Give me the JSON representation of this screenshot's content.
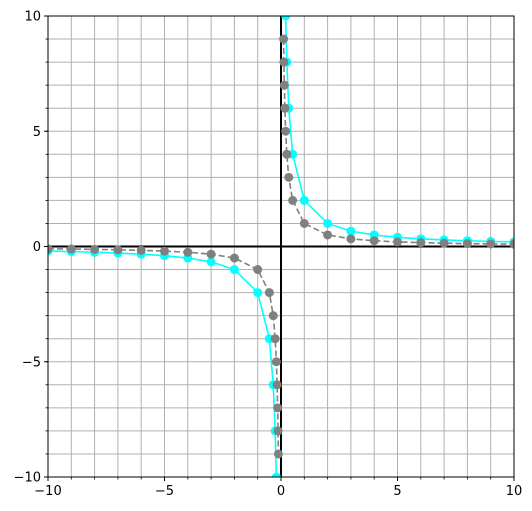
{
  "chart_data": {
    "type": "line",
    "title": "",
    "xlabel": "",
    "ylabel": "",
    "xlim": [
      -10,
      10
    ],
    "ylim": [
      -10,
      10
    ],
    "grid": true,
    "minor_grid": true,
    "x_ticks": [
      -10,
      -5,
      0,
      5,
      10
    ],
    "y_ticks": [
      -10,
      -5,
      0,
      5,
      10
    ],
    "x_tick_labels": [
      "−10",
      "−5",
      "0",
      "5",
      "10"
    ],
    "y_tick_labels": [
      "−10",
      "−5",
      "0",
      "5",
      "10"
    ],
    "series": [
      {
        "color": "#00ffff",
        "line_style": "solid",
        "marker": "circle",
        "points": [
          [
            -10,
            -0.2
          ],
          [
            -9,
            -0.222
          ],
          [
            -8,
            -0.25
          ],
          [
            -7,
            -0.286
          ],
          [
            -6,
            -0.333
          ],
          [
            -5,
            -0.4
          ],
          [
            -4,
            -0.5
          ],
          [
            -3,
            -0.667
          ],
          [
            -2,
            -1
          ],
          [
            -1,
            -2
          ],
          [
            -0.5,
            -4
          ],
          [
            -0.333,
            -6
          ],
          [
            -0.25,
            -8
          ],
          [
            -0.2,
            -10
          ],
          [
            0.2,
            10
          ],
          [
            0.25,
            8
          ],
          [
            0.333,
            6
          ],
          [
            0.5,
            4
          ],
          [
            1,
            2
          ],
          [
            2,
            1
          ],
          [
            3,
            0.667
          ],
          [
            4,
            0.5
          ],
          [
            5,
            0.4
          ],
          [
            6,
            0.333
          ],
          [
            7,
            0.286
          ],
          [
            8,
            0.25
          ],
          [
            9,
            0.222
          ],
          [
            10,
            0.2
          ]
        ]
      },
      {
        "color": "#808080",
        "line_style": "dashed",
        "marker": "circle",
        "points": [
          [
            -10,
            -0.1
          ],
          [
            -9,
            -0.111
          ],
          [
            -8,
            -0.125
          ],
          [
            -7,
            -0.143
          ],
          [
            -6,
            -0.167
          ],
          [
            -5,
            -0.2
          ],
          [
            -4,
            -0.25
          ],
          [
            -3,
            -0.333
          ],
          [
            -2,
            -0.5
          ],
          [
            -1,
            -1
          ],
          [
            -0.5,
            -2
          ],
          [
            -0.333,
            -3
          ],
          [
            -0.25,
            -4
          ],
          [
            -0.2,
            -5
          ],
          [
            -0.167,
            -6
          ],
          [
            -0.143,
            -7
          ],
          [
            -0.125,
            -8
          ],
          [
            -0.111,
            -9
          ],
          [
            0.111,
            9
          ],
          [
            0.125,
            8
          ],
          [
            0.143,
            7
          ],
          [
            0.167,
            6
          ],
          [
            0.2,
            5
          ],
          [
            0.25,
            4
          ],
          [
            0.333,
            3
          ],
          [
            0.5,
            2
          ],
          [
            1,
            1
          ],
          [
            2,
            0.5
          ],
          [
            3,
            0.333
          ],
          [
            4,
            0.25
          ],
          [
            5,
            0.2
          ],
          [
            6,
            0.167
          ],
          [
            7,
            0.143
          ],
          [
            8,
            0.125
          ],
          [
            9,
            0.111
          ],
          [
            10,
            0.1
          ]
        ]
      }
    ]
  }
}
